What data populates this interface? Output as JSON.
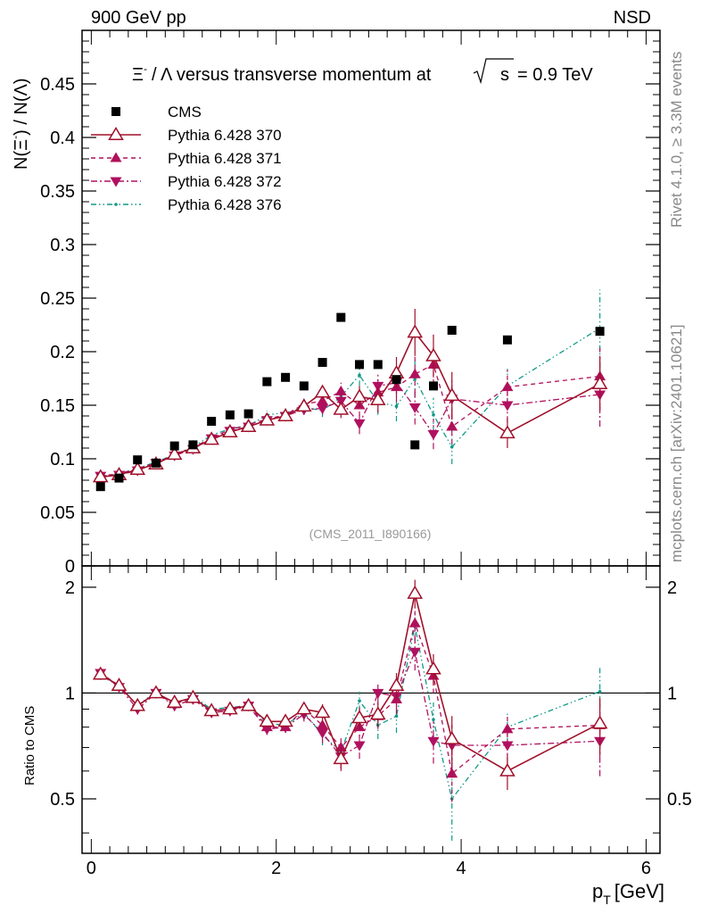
{
  "header": {
    "left": "900 GeV pp",
    "right": "NSD"
  },
  "side_labels": {
    "rivet": "Rivet 4.1.0, ≥ 3.3M events",
    "mcplots": "mcplots.cern.ch [arXiv:2401.10621]"
  },
  "reference_label": "(CMS_2011_I890166)",
  "chart_data": [
    {
      "panel": "main",
      "type": "scatter",
      "title": "Ξ⁻ / Λ versus transverse momentum at √s = 0.9 TeV",
      "title_parts": {
        "pre": "Ξ",
        "sup": "-",
        "mid": "/ Λ versus transverse momentum at",
        "sqrt_arg": "s",
        "post": "= 0.9 TeV"
      },
      "ylabel": "N(Ξ⁻) / N(Λ)",
      "ylabel_parts": {
        "a": "N(Ξ",
        "a_sup": "-",
        "b": ")  / N(Λ)"
      },
      "xlim": [
        -0.1,
        6.15
      ],
      "ylim": [
        0,
        0.5
      ],
      "yticks": [
        "0",
        "0.05",
        "0.1",
        "0.15",
        "0.2",
        "0.25",
        "0.3",
        "0.35",
        "0.4",
        "0.45"
      ],
      "legend_position": "top-left",
      "series": [
        {
          "name": "CMS",
          "marker": "square",
          "color": "#000000",
          "x": [
            0.1,
            0.3,
            0.5,
            0.7,
            0.9,
            1.1,
            1.3,
            1.5,
            1.7,
            1.9,
            2.1,
            2.3,
            2.5,
            2.7,
            2.9,
            3.1,
            3.3,
            3.5,
            3.7,
            3.9,
            4.5,
            5.5
          ],
          "y": [
            0.074,
            0.082,
            0.099,
            0.096,
            0.112,
            0.113,
            0.135,
            0.141,
            0.142,
            0.172,
            0.176,
            0.168,
            0.19,
            0.232,
            0.188,
            0.188,
            0.174,
            0.113,
            0.168,
            0.22,
            0.211,
            0.219
          ]
        },
        {
          "name": "Pythia 6.428 370",
          "marker": "open-triangle-up",
          "line": "solid",
          "color": "#a0102a",
          "x": [
            0.1,
            0.3,
            0.5,
            0.7,
            0.9,
            1.1,
            1.3,
            1.5,
            1.7,
            1.9,
            2.1,
            2.3,
            2.5,
            2.7,
            2.9,
            3.1,
            3.3,
            3.5,
            3.7,
            3.9,
            4.5,
            5.5
          ],
          "y": [
            0.083,
            0.085,
            0.09,
            0.095,
            0.104,
            0.11,
            0.118,
            0.125,
            0.13,
            0.136,
            0.14,
            0.149,
            0.162,
            0.146,
            0.158,
            0.155,
            0.18,
            0.218,
            0.196,
            0.159,
            0.124,
            0.17
          ],
          "err": [
            0.002,
            0.002,
            0.002,
            0.002,
            0.002,
            0.002,
            0.003,
            0.003,
            0.003,
            0.004,
            0.004,
            0.005,
            0.006,
            0.008,
            0.01,
            0.012,
            0.015,
            0.022,
            0.02,
            0.022,
            0.014,
            0.025
          ]
        },
        {
          "name": "Pythia 6.428 371",
          "marker": "triangle-up",
          "line": "dashed",
          "color": "#b0105a",
          "x": [
            0.1,
            0.3,
            0.5,
            0.7,
            0.9,
            1.1,
            1.3,
            1.5,
            1.7,
            1.9,
            2.1,
            2.3,
            2.5,
            2.7,
            2.9,
            3.1,
            3.3,
            3.5,
            3.7,
            3.9,
            4.5,
            5.5
          ],
          "y": [
            0.084,
            0.086,
            0.091,
            0.096,
            0.104,
            0.11,
            0.12,
            0.127,
            0.132,
            0.137,
            0.141,
            0.151,
            0.154,
            0.163,
            0.15,
            0.162,
            0.167,
            0.179,
            0.188,
            0.13,
            0.167,
            0.177
          ],
          "err": [
            0.002,
            0.002,
            0.002,
            0.002,
            0.002,
            0.002,
            0.003,
            0.003,
            0.003,
            0.004,
            0.004,
            0.005,
            0.006,
            0.008,
            0.01,
            0.012,
            0.014,
            0.018,
            0.018,
            0.016,
            0.016,
            0.03
          ]
        },
        {
          "name": "Pythia 6.428 372",
          "marker": "triangle-down",
          "line": "dash-dot",
          "color": "#b01060",
          "x": [
            0.1,
            0.3,
            0.5,
            0.7,
            0.9,
            1.1,
            1.3,
            1.5,
            1.7,
            1.9,
            2.1,
            2.3,
            2.5,
            2.7,
            2.9,
            3.1,
            3.3,
            3.5,
            3.7,
            3.9,
            4.5,
            5.5
          ],
          "y": [
            0.084,
            0.085,
            0.089,
            0.096,
            0.103,
            0.109,
            0.119,
            0.126,
            0.13,
            0.136,
            0.14,
            0.146,
            0.147,
            0.154,
            0.133,
            0.168,
            0.171,
            0.148,
            0.123,
            0.156,
            0.15,
            0.16
          ],
          "err": [
            0.002,
            0.002,
            0.002,
            0.002,
            0.002,
            0.002,
            0.003,
            0.003,
            0.003,
            0.004,
            0.004,
            0.005,
            0.006,
            0.008,
            0.01,
            0.012,
            0.014,
            0.016,
            0.014,
            0.018,
            0.016,
            0.03
          ]
        },
        {
          "name": "Pythia 6.428 376",
          "marker": "dot",
          "line": "dash-dot-dot",
          "color": "#119988",
          "x": [
            0.1,
            0.3,
            0.5,
            0.7,
            0.9,
            1.1,
            1.3,
            1.5,
            1.7,
            1.9,
            2.1,
            2.3,
            2.5,
            2.7,
            2.9,
            3.1,
            3.3,
            3.5,
            3.7,
            3.9,
            4.5,
            5.5
          ],
          "y": [
            0.083,
            0.086,
            0.091,
            0.097,
            0.104,
            0.111,
            0.122,
            0.128,
            0.131,
            0.141,
            0.143,
            0.148,
            0.145,
            0.158,
            0.178,
            0.153,
            0.149,
            0.175,
            0.141,
            0.111,
            0.168,
            0.222
          ],
          "err": [
            0.002,
            0.002,
            0.002,
            0.002,
            0.002,
            0.002,
            0.003,
            0.003,
            0.003,
            0.004,
            0.004,
            0.005,
            0.006,
            0.008,
            0.01,
            0.012,
            0.014,
            0.018,
            0.016,
            0.016,
            0.016,
            0.036
          ]
        }
      ]
    },
    {
      "panel": "ratio",
      "type": "line",
      "ylabel": "Ratio to CMS",
      "xlabel": "p_T [GeV]",
      "xlabel_parts": {
        "p": "p",
        "sub": "T",
        "unit": "[GeV]"
      },
      "xlim": [
        -0.1,
        6.15
      ],
      "xticks": [
        "0",
        "2",
        "4",
        "6"
      ],
      "ylim": [
        0.35,
        2.3
      ],
      "yticks": [
        "0.5",
        "1",
        "2"
      ],
      "reference_line": 1,
      "series": [
        {
          "name": "Pythia 6.428 370",
          "color": "#a0102a",
          "y": [
            1.13,
            1.05,
            0.92,
            1.0,
            0.94,
            0.97,
            0.89,
            0.9,
            0.92,
            0.83,
            0.83,
            0.9,
            0.88,
            0.65,
            0.85,
            0.87,
            1.05,
            1.92,
            1.17,
            0.74,
            0.6,
            0.82
          ],
          "err": [
            0.03,
            0.03,
            0.03,
            0.03,
            0.03,
            0.03,
            0.03,
            0.03,
            0.03,
            0.03,
            0.03,
            0.04,
            0.05,
            0.05,
            0.06,
            0.07,
            0.09,
            0.18,
            0.12,
            0.12,
            0.07,
            0.15
          ]
        },
        {
          "name": "Pythia 6.428 371",
          "color": "#b0105a",
          "y": [
            1.14,
            1.05,
            0.92,
            1.0,
            0.93,
            0.97,
            0.89,
            0.9,
            0.93,
            0.8,
            0.8,
            0.9,
            0.81,
            0.7,
            0.8,
            0.86,
            0.96,
            1.58,
            1.12,
            0.59,
            0.79,
            0.81
          ],
          "err": [
            0.03,
            0.03,
            0.03,
            0.03,
            0.03,
            0.03,
            0.03,
            0.03,
            0.03,
            0.03,
            0.03,
            0.04,
            0.05,
            0.05,
            0.06,
            0.07,
            0.09,
            0.16,
            0.12,
            0.1,
            0.08,
            0.15
          ]
        },
        {
          "name": "Pythia 6.428 372",
          "color": "#b01060",
          "y": [
            1.14,
            1.04,
            0.9,
            1.0,
            0.92,
            0.96,
            0.88,
            0.89,
            0.92,
            0.79,
            0.8,
            0.87,
            0.77,
            0.66,
            0.71,
            1.0,
            0.98,
            1.31,
            0.73,
            0.71,
            0.71,
            0.73
          ],
          "err": [
            0.03,
            0.03,
            0.03,
            0.03,
            0.03,
            0.03,
            0.03,
            0.03,
            0.03,
            0.03,
            0.03,
            0.04,
            0.05,
            0.05,
            0.06,
            0.07,
            0.09,
            0.15,
            0.1,
            0.1,
            0.08,
            0.15
          ]
        },
        {
          "name": "Pythia 6.428 376",
          "color": "#119988",
          "y": [
            1.12,
            1.05,
            0.92,
            1.01,
            0.93,
            0.98,
            0.9,
            0.91,
            0.92,
            0.82,
            0.81,
            0.88,
            0.76,
            0.68,
            0.95,
            0.81,
            0.86,
            1.55,
            0.84,
            0.5,
            0.8,
            1.01
          ],
          "err": [
            0.03,
            0.03,
            0.03,
            0.03,
            0.03,
            0.03,
            0.03,
            0.03,
            0.03,
            0.03,
            0.03,
            0.04,
            0.05,
            0.05,
            0.06,
            0.07,
            0.09,
            0.16,
            0.1,
            0.12,
            0.08,
            0.18
          ]
        }
      ]
    }
  ]
}
